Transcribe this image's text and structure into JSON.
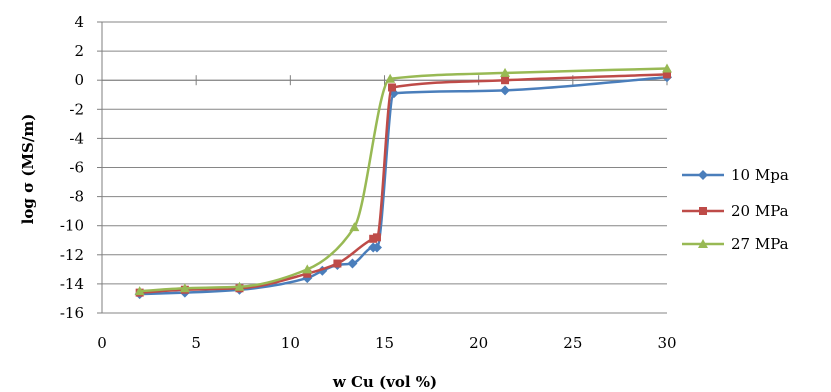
{
  "chart_data": {
    "type": "line",
    "xlabel": "w Cu (vol %)",
    "ylabel": "log σ (MS/m)",
    "xlim": [
      0,
      30
    ],
    "ylim": [
      -16,
      4
    ],
    "x_ticks": [
      0,
      5,
      10,
      15,
      20,
      25,
      30
    ],
    "y_ticks": [
      4,
      2,
      0,
      -2,
      -4,
      -6,
      -8,
      -10,
      -12,
      -14,
      -16
    ],
    "grid": "horizontal",
    "legend_position": "right",
    "series": [
      {
        "name": "10 Mpa",
        "color": "#4a7ebb",
        "marker": "diamond",
        "points": [
          [
            2.0,
            -14.7
          ],
          [
            4.4,
            -14.6
          ],
          [
            7.3,
            -14.4
          ],
          [
            10.9,
            -13.6
          ],
          [
            11.7,
            -13.1
          ],
          [
            12.5,
            -12.7
          ],
          [
            13.3,
            -12.6
          ],
          [
            14.4,
            -11.5
          ],
          [
            14.6,
            -11.5
          ],
          [
            15.5,
            -0.9
          ],
          [
            21.4,
            -0.7
          ],
          [
            30.0,
            0.2
          ]
        ]
      },
      {
        "name": "20 MPa",
        "color": "#be4b48",
        "marker": "square",
        "points": [
          [
            2.0,
            -14.6
          ],
          [
            4.4,
            -14.4
          ],
          [
            7.3,
            -14.3
          ],
          [
            10.9,
            -13.3
          ],
          [
            12.5,
            -12.6
          ],
          [
            14.4,
            -10.9
          ],
          [
            14.6,
            -10.8
          ],
          [
            15.4,
            -0.5
          ],
          [
            21.4,
            0.0
          ],
          [
            30.0,
            0.4
          ]
        ]
      },
      {
        "name": "27 MPa",
        "color": "#98b954",
        "marker": "triangle",
        "points": [
          [
            2.0,
            -14.5
          ],
          [
            4.4,
            -14.3
          ],
          [
            7.3,
            -14.2
          ],
          [
            10.9,
            -13.0
          ],
          [
            13.4,
            -10.1
          ],
          [
            15.3,
            0.1
          ],
          [
            21.4,
            0.5
          ],
          [
            30.0,
            0.8
          ]
        ]
      }
    ]
  }
}
